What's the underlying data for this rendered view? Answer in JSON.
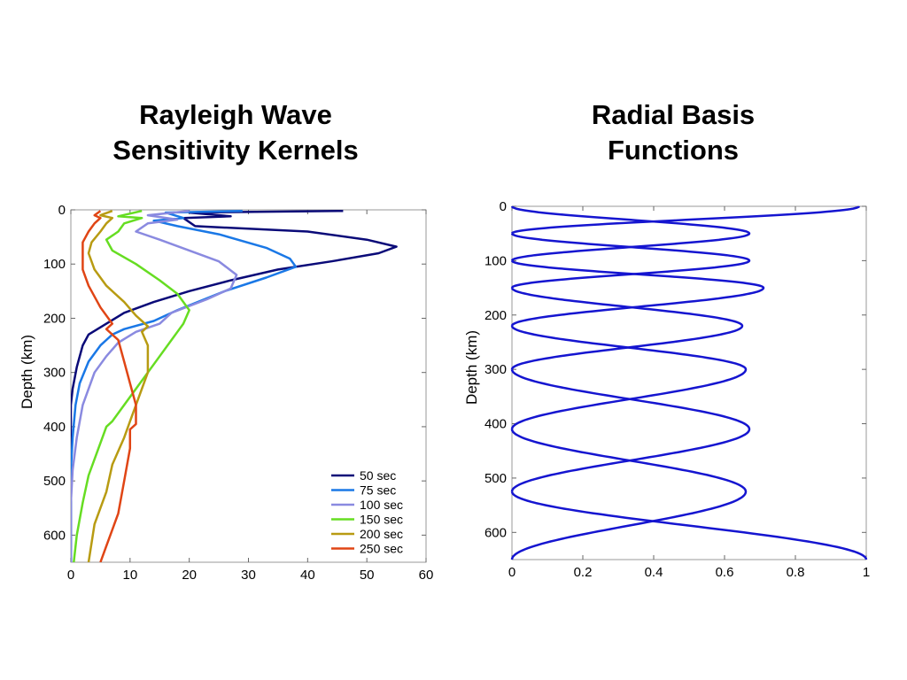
{
  "slide": {
    "left_title": [
      "Rayleigh Wave",
      "Sensitivity Kernels"
    ],
    "right_title": [
      "Radial Basis",
      "Functions"
    ]
  },
  "chart_data": [
    {
      "type": "line",
      "title": "Rayleigh Wave Sensitivity Kernels",
      "xlabel": "",
      "ylabel": "Depth (km)",
      "xlim": [
        0,
        60
      ],
      "ylim": [
        650,
        0
      ],
      "y_inverted": true,
      "x_ticks": [
        0,
        10,
        20,
        30,
        40,
        50,
        60
      ],
      "y_ticks": [
        0,
        100,
        200,
        300,
        400,
        500,
        600
      ],
      "legend": "bottom-right",
      "grid": false,
      "series": [
        {
          "name": "50 sec",
          "color": "#0a0a78",
          "points": [
            [
              46,
              2
            ],
            [
              20,
              5
            ],
            [
              27,
              12
            ],
            [
              19,
              15
            ],
            [
              21,
              30
            ],
            [
              40,
              40
            ],
            [
              50,
              55
            ],
            [
              55,
              68
            ],
            [
              52,
              80
            ],
            [
              44,
              95
            ],
            [
              35,
              110
            ],
            [
              27,
              130
            ],
            [
              20,
              150
            ],
            [
              14,
              170
            ],
            [
              9,
              190
            ],
            [
              6,
              210
            ],
            [
              3,
              230
            ],
            [
              2,
              250
            ],
            [
              1,
              290
            ],
            [
              0.3,
              330
            ],
            [
              0,
              360
            ],
            [
              0,
              650
            ]
          ]
        },
        {
          "name": "75 sec",
          "color": "#1a78e6",
          "points": [
            [
              29,
              2
            ],
            [
              16,
              5
            ],
            [
              19,
              15
            ],
            [
              14,
              20
            ],
            [
              18,
              30
            ],
            [
              25,
              45
            ],
            [
              33,
              70
            ],
            [
              37,
              90
            ],
            [
              38,
              105
            ],
            [
              33,
              125
            ],
            [
              26,
              150
            ],
            [
              18,
              185
            ],
            [
              14,
              205
            ],
            [
              9,
              220
            ],
            [
              7,
              230
            ],
            [
              5,
              250
            ],
            [
              3,
              280
            ],
            [
              1.5,
              320
            ],
            [
              0.8,
              360
            ],
            [
              0.3,
              420
            ],
            [
              0,
              480
            ],
            [
              0,
              650
            ]
          ]
        },
        {
          "name": "100 sec",
          "color": "#8a8ae0",
          "points": [
            [
              20,
              2
            ],
            [
              13,
              10
            ],
            [
              18,
              18
            ],
            [
              13,
              25
            ],
            [
              11,
              40
            ],
            [
              15,
              55
            ],
            [
              20,
              75
            ],
            [
              25,
              95
            ],
            [
              28,
              120
            ],
            [
              27,
              145
            ],
            [
              23,
              165
            ],
            [
              17,
              190
            ],
            [
              15,
              210
            ],
            [
              11,
              225
            ],
            [
              8,
              245
            ],
            [
              6,
              270
            ],
            [
              4,
              300
            ],
            [
              2,
              360
            ],
            [
              1,
              420
            ],
            [
              0.3,
              480
            ],
            [
              0,
              540
            ],
            [
              0,
              650
            ]
          ]
        },
        {
          "name": "150 sec",
          "color": "#66dd22",
          "points": [
            [
              12,
              2
            ],
            [
              8,
              12
            ],
            [
              12,
              15
            ],
            [
              9,
              25
            ],
            [
              8,
              40
            ],
            [
              6,
              55
            ],
            [
              7,
              75
            ],
            [
              11,
              100
            ],
            [
              15,
              130
            ],
            [
              18,
              155
            ],
            [
              20,
              185
            ],
            [
              19,
              210
            ],
            [
              18,
              225
            ],
            [
              15,
              270
            ],
            [
              13,
              300
            ],
            [
              11,
              330
            ],
            [
              9,
              360
            ],
            [
              7,
              390
            ],
            [
              6,
              400
            ],
            [
              5,
              430
            ],
            [
              3,
              490
            ],
            [
              2,
              540
            ],
            [
              1,
              600
            ],
            [
              0.5,
              650
            ]
          ]
        },
        {
          "name": "200 sec",
          "color": "#b89b12",
          "points": [
            [
              7,
              2
            ],
            [
              5,
              10
            ],
            [
              7,
              15
            ],
            [
              6,
              25
            ],
            [
              5,
              40
            ],
            [
              3.5,
              60
            ],
            [
              3,
              80
            ],
            [
              4,
              110
            ],
            [
              6,
              140
            ],
            [
              9,
              170
            ],
            [
              11,
              195
            ],
            [
              13,
              215
            ],
            [
              12,
              225
            ],
            [
              13,
              250
            ],
            [
              13,
              300
            ],
            [
              12,
              330
            ],
            [
              11,
              360
            ],
            [
              10,
              390
            ],
            [
              9,
              420
            ],
            [
              7,
              470
            ],
            [
              6,
              520
            ],
            [
              4,
              580
            ],
            [
              3,
              650
            ]
          ]
        },
        {
          "name": "250 sec",
          "color": "#e04515",
          "points": [
            [
              5,
              2
            ],
            [
              4,
              10
            ],
            [
              5,
              15
            ],
            [
              4,
              25
            ],
            [
              3,
              40
            ],
            [
              2,
              60
            ],
            [
              2,
              80
            ],
            [
              2,
              110
            ],
            [
              3,
              140
            ],
            [
              5,
              180
            ],
            [
              7,
              210
            ],
            [
              6,
              220
            ],
            [
              8,
              240
            ],
            [
              9,
              280
            ],
            [
              10,
              320
            ],
            [
              11,
              360
            ],
            [
              11,
              395
            ],
            [
              10,
              405
            ],
            [
              10,
              440
            ],
            [
              9,
              500
            ],
            [
              8,
              560
            ],
            [
              6,
              620
            ],
            [
              5,
              650
            ]
          ]
        }
      ]
    },
    {
      "type": "line",
      "title": "Radial Basis Functions",
      "xlabel": "",
      "ylabel": "Depth (km)",
      "xlim": [
        0,
        1
      ],
      "ylim": [
        650,
        0
      ],
      "y_inverted": true,
      "x_ticks": [
        0,
        0.2,
        0.4,
        0.6,
        0.8,
        1
      ],
      "x_tick_labels": [
        "0",
        "0.2",
        "0.4",
        "0.6",
        "0.8",
        "1"
      ],
      "y_ticks": [
        0,
        100,
        200,
        300,
        400,
        500,
        600
      ],
      "grid": false,
      "line_color": "#1515d0",
      "basis_functions": [
        {
          "start": 0,
          "peak": 0,
          "end": 50,
          "peak_value": 0.98
        },
        {
          "start": 0,
          "peak": 50,
          "end": 100,
          "peak_value": 0.67
        },
        {
          "start": 50,
          "peak": 100,
          "end": 150,
          "peak_value": 0.67
        },
        {
          "start": 100,
          "peak": 150,
          "end": 220,
          "peak_value": 0.71
        },
        {
          "start": 150,
          "peak": 220,
          "end": 300,
          "peak_value": 0.65
        },
        {
          "start": 220,
          "peak": 300,
          "end": 410,
          "peak_value": 0.66
        },
        {
          "start": 300,
          "peak": 410,
          "end": 525,
          "peak_value": 0.67
        },
        {
          "start": 410,
          "peak": 525,
          "end": 650,
          "peak_value": 0.66
        },
        {
          "start": 525,
          "peak": 650,
          "end": 650,
          "peak_value": 1.0
        }
      ]
    }
  ]
}
